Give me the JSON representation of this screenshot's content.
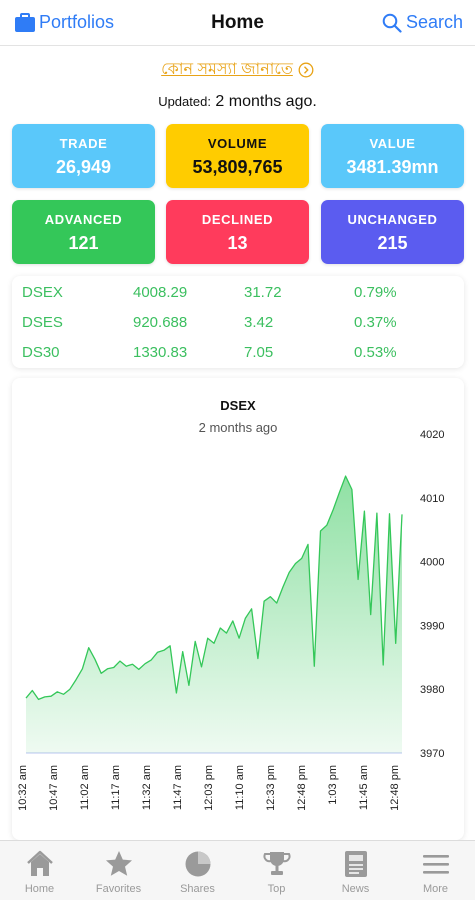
{
  "nav": {
    "left_label": "Portfolios",
    "title": "Home",
    "right_label": "Search"
  },
  "report_link": "কোন সমস্যা জানাতে",
  "updated": {
    "label": "Updated:",
    "value": "2 months ago."
  },
  "tiles": [
    {
      "label": "TRADE",
      "value": "26,949",
      "color": "#5ac8fa"
    },
    {
      "label": "VOLUME",
      "value": "53,809,765",
      "color": "#ffcc00"
    },
    {
      "label": "VALUE",
      "value": "3481.39mn",
      "color": "#5ac8fa"
    },
    {
      "label": "ADVANCED",
      "value": "121",
      "color": "#34c759"
    },
    {
      "label": "DECLINED",
      "value": "13",
      "color": "#ff3b5c"
    },
    {
      "label": "UNCHANGED",
      "value": "215",
      "color": "#5b5cf0"
    }
  ],
  "indices": [
    {
      "name": "DSEX",
      "value": "4008.29",
      "change": "31.72",
      "percent": "0.79%"
    },
    {
      "name": "DSES",
      "value": "920.688",
      "change": "3.42",
      "percent": "0.37%"
    },
    {
      "name": "DS30",
      "value": "1330.83",
      "change": "7.05",
      "percent": "0.53%"
    }
  ],
  "chart_data": {
    "type": "area",
    "title": "DSEX",
    "subtitle": "2 months ago",
    "ylim": [
      3970,
      4020
    ],
    "y_ticks": [
      4020,
      4010,
      4000,
      3990,
      3980,
      3970
    ],
    "x_tick_labels": [
      "10:32 am",
      "10:47 am",
      "11:02 am",
      "11:17 am",
      "11:32 am",
      "11:47 am",
      "12:03 pm",
      "11:10 am",
      "12:33 pm",
      "12:48 pm",
      "1:03 pm",
      "11:45 am",
      "12:48 pm"
    ],
    "x": [
      0,
      1,
      2,
      3,
      4,
      5,
      6,
      7,
      8,
      9,
      10,
      11,
      12,
      13,
      14,
      15,
      16,
      17,
      18,
      19,
      20,
      21,
      22,
      23,
      24,
      25,
      26,
      27,
      28,
      29,
      30,
      31,
      32,
      33,
      34,
      35,
      36,
      37,
      38,
      39,
      40,
      41,
      42,
      43,
      44,
      45,
      46,
      47,
      48,
      49,
      50,
      51,
      52,
      53,
      54,
      55,
      56,
      57,
      58,
      59,
      60
    ],
    "values": [
      3978.6,
      3979.8,
      3978.4,
      3978.8,
      3978.9,
      3979.6,
      3979.2,
      3980.0,
      3981.5,
      3983.2,
      3986.5,
      3984.7,
      3982.5,
      3983.2,
      3983.4,
      3984.4,
      3983.6,
      3983.9,
      3983.1,
      3984.0,
      3984.6,
      3985.8,
      3986.1,
      3986.8,
      3979.4,
      3985.9,
      3980.6,
      3987.5,
      3983.5,
      3988.0,
      3987.2,
      3989.6,
      3988.8,
      3990.7,
      3988.0,
      3991.1,
      3992.6,
      3984.8,
      3993.8,
      3994.5,
      3993.5,
      3996.0,
      3998.3,
      3999.7,
      4000.5,
      4002.7,
      3983.6,
      4004.8,
      4005.7,
      4008.1,
      4010.8,
      4013.4,
      4011.3,
      3997.2,
      4007.9,
      3991.7,
      4007.6,
      3983.8,
      4007.5,
      3987.2,
      4007.4
    ],
    "series_color": "#34c759",
    "grid": false
  },
  "tabs": [
    {
      "label": "Home",
      "icon": "home-icon"
    },
    {
      "label": "Favorites",
      "icon": "star-icon"
    },
    {
      "label": "Shares",
      "icon": "pie-chart-icon"
    },
    {
      "label": "Top",
      "icon": "trophy-icon"
    },
    {
      "label": "News",
      "icon": "newspaper-icon"
    },
    {
      "label": "More",
      "icon": "menu-icon"
    }
  ],
  "colors": {
    "accent": "#2f7cf6",
    "link": "#e8a317",
    "positive": "#3bbf5f"
  }
}
